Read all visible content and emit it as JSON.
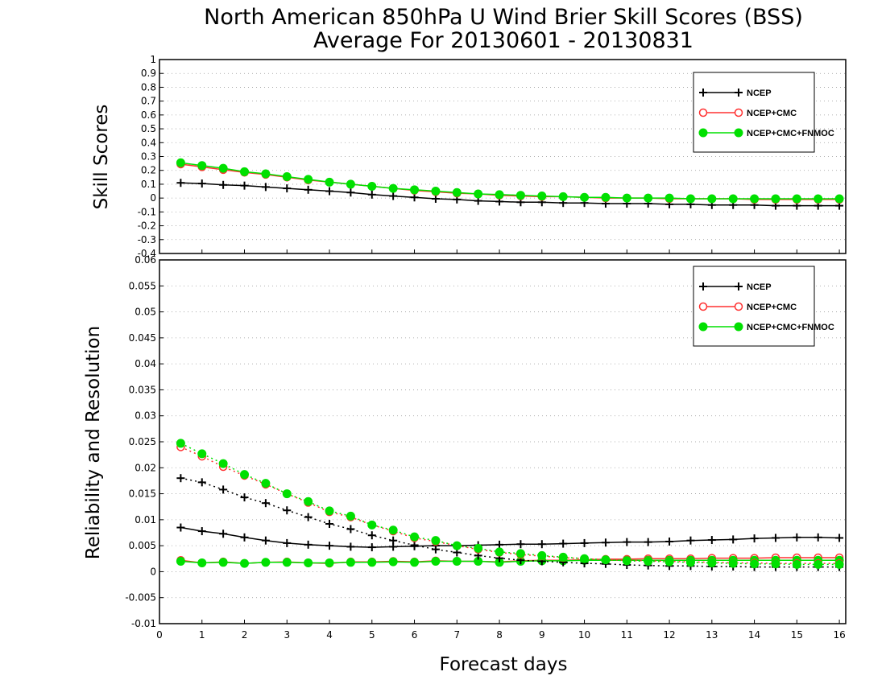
{
  "title": "North American 850hPa U Wind Brier Skill Scores (BSS)",
  "subtitle": "Average For 20130601 - 20130831",
  "chart_data": [
    {
      "type": "line",
      "ylabel": "Skill Scores",
      "xlim": [
        0,
        16.15
      ],
      "ylim": [
        -0.4,
        1
      ],
      "yticks": [
        "1",
        "0.9",
        "0.8",
        "0.7",
        "0.6",
        "0.5",
        "0.4",
        "0.3",
        "0.2",
        "0.1",
        "0",
        "-0.1",
        "-0.2",
        "-0.3",
        "-0.4"
      ],
      "grid": true,
      "legend_position": "top-right",
      "x": [
        0.5,
        1,
        1.5,
        2,
        2.5,
        3,
        3.5,
        4,
        4.5,
        5,
        5.5,
        6,
        6.5,
        7,
        7.5,
        8,
        8.5,
        9,
        9.5,
        10,
        10.5,
        11,
        11.5,
        12,
        12.5,
        13,
        13.5,
        14,
        14.5,
        15,
        15.5,
        16
      ],
      "series": [
        {
          "name": "NCEP",
          "color": "#000000",
          "marker": "plus",
          "dash": "solid",
          "values": [
            0.11,
            0.105,
            0.095,
            0.09,
            0.08,
            0.07,
            0.06,
            0.05,
            0.04,
            0.025,
            0.015,
            0.005,
            -0.005,
            -0.01,
            -0.02,
            -0.025,
            -0.03,
            -0.03,
            -0.035,
            -0.035,
            -0.04,
            -0.04,
            -0.04,
            -0.045,
            -0.045,
            -0.05,
            -0.05,
            -0.05,
            -0.055,
            -0.055,
            -0.055,
            -0.055
          ]
        },
        {
          "name": "NCEP+CMC",
          "color": "#ff3030",
          "marker": "circle-open",
          "dash": "solid",
          "values": [
            0.245,
            0.225,
            0.205,
            0.185,
            0.17,
            0.15,
            0.13,
            0.115,
            0.1,
            0.085,
            0.07,
            0.055,
            0.045,
            0.035,
            0.03,
            0.02,
            0.015,
            0.01,
            0.01,
            0.005,
            0,
            0,
            0,
            -0.005,
            -0.005,
            -0.005,
            -0.005,
            -0.01,
            -0.01,
            -0.01,
            -0.01,
            -0.01
          ]
        },
        {
          "name": "NCEP+CMC+FNMOC",
          "color": "#00e000",
          "marker": "circle-filled",
          "dash": "solid",
          "values": [
            0.255,
            0.235,
            0.215,
            0.19,
            0.175,
            0.155,
            0.135,
            0.115,
            0.1,
            0.085,
            0.07,
            0.06,
            0.05,
            0.04,
            0.03,
            0.025,
            0.02,
            0.015,
            0.01,
            0.005,
            0.005,
            0,
            0,
            0,
            -0.005,
            -0.005,
            -0.005,
            -0.005,
            -0.005,
            -0.005,
            -0.005,
            -0.005
          ]
        }
      ],
      "legend": [
        "NCEP",
        "NCEP+CMC",
        "NCEP+CMC+FNMOC"
      ]
    },
    {
      "type": "line",
      "xlabel": "Forecast days",
      "ylabel": "Reliability and Resolution",
      "xlim": [
        0,
        16.15
      ],
      "ylim": [
        -0.01,
        0.06
      ],
      "xticks": [
        "0",
        "1",
        "2",
        "3",
        "4",
        "5",
        "6",
        "7",
        "8",
        "9",
        "10",
        "11",
        "12",
        "13",
        "14",
        "15",
        "16"
      ],
      "yticks": [
        "0.06",
        "0.055",
        "0.05",
        "0.045",
        "0.04",
        "0.035",
        "0.03",
        "0.025",
        "0.02",
        "0.015",
        "0.01",
        "0.005",
        "0",
        "-0.005",
        "-0.01"
      ],
      "grid": true,
      "legend_position": "top-right",
      "x": [
        0.5,
        1,
        1.5,
        2,
        2.5,
        3,
        3.5,
        4,
        4.5,
        5,
        5.5,
        6,
        6.5,
        7,
        7.5,
        8,
        8.5,
        9,
        9.5,
        10,
        10.5,
        11,
        11.5,
        12,
        12.5,
        13,
        13.5,
        14,
        14.5,
        15,
        15.5,
        16
      ],
      "series": [
        {
          "name": "NCEP",
          "color": "#000000",
          "marker": "plus",
          "dash": "solid",
          "values": [
            0.0085,
            0.0078,
            0.0073,
            0.0066,
            0.006,
            0.0055,
            0.0052,
            0.005,
            0.0048,
            0.0047,
            0.0048,
            0.0049,
            0.005,
            0.005,
            0.0051,
            0.0052,
            0.0053,
            0.0053,
            0.0054,
            0.0055,
            0.0056,
            0.0057,
            0.0057,
            0.0058,
            0.006,
            0.0061,
            0.0062,
            0.0064,
            0.0065,
            0.0066,
            0.0066,
            0.0065
          ]
        },
        {
          "name": "NCEP+CMC",
          "color": "#ff3030",
          "marker": "circle-open",
          "dash": "solid",
          "values": [
            0.0022,
            0.0017,
            0.0019,
            0.0016,
            0.0018,
            0.0019,
            0.0017,
            0.0016,
            0.0019,
            0.0019,
            0.002,
            0.0019,
            0.0021,
            0.002,
            0.002,
            0.0019,
            0.0021,
            0.0022,
            0.0022,
            0.0023,
            0.0024,
            0.0024,
            0.0025,
            0.0025,
            0.0025,
            0.0026,
            0.0026,
            0.0026,
            0.0027,
            0.0027,
            0.0027,
            0.0027
          ]
        },
        {
          "name": "NCEP+CMC+FNMOC",
          "color": "#00e000",
          "marker": "circle-filled",
          "dash": "solid",
          "values": [
            0.002,
            0.0017,
            0.0018,
            0.0016,
            0.0018,
            0.0018,
            0.0017,
            0.0017,
            0.0018,
            0.0018,
            0.0019,
            0.0018,
            0.002,
            0.002,
            0.002,
            0.0018,
            0.002,
            0.0021,
            0.0021,
            0.0022,
            0.0022,
            0.0022,
            0.0022,
            0.0022,
            0.0022,
            0.0022,
            0.0022,
            0.0022,
            0.0022,
            0.0022,
            0.0022,
            0.0022
          ]
        },
        {
          "name": "NCEP",
          "color": "#000000",
          "marker": "plus",
          "dash": "dotted",
          "values": [
            0.018,
            0.0172,
            0.0158,
            0.0143,
            0.0132,
            0.0118,
            0.0105,
            0.0092,
            0.0082,
            0.007,
            0.006,
            0.0051,
            0.0043,
            0.0037,
            0.0031,
            0.0026,
            0.0022,
            0.002,
            0.0018,
            0.0016,
            0.0015,
            0.0013,
            0.0012,
            0.0011,
            0.0011,
            0.001,
            0.001,
            0.0009,
            0.0009,
            0.0009,
            0.0009,
            0.0009
          ]
        },
        {
          "name": "NCEP+CMC",
          "color": "#ff3030",
          "marker": "circle-open",
          "dash": "dotted",
          "values": [
            0.024,
            0.0222,
            0.0202,
            0.0185,
            0.0168,
            0.015,
            0.0133,
            0.0115,
            0.0105,
            0.009,
            0.0078,
            0.0065,
            0.0058,
            0.005,
            0.0043,
            0.0037,
            0.0033,
            0.003,
            0.0027,
            0.0025,
            0.0023,
            0.0022,
            0.0021,
            0.002,
            0.0019,
            0.0018,
            0.0017,
            0.0017,
            0.0016,
            0.0016,
            0.0016,
            0.0016
          ]
        },
        {
          "name": "NCEP+CMC+FNMOC",
          "color": "#00e000",
          "marker": "circle-filled",
          "dash": "dotted",
          "values": [
            0.0247,
            0.0227,
            0.0208,
            0.0187,
            0.017,
            0.015,
            0.0135,
            0.0117,
            0.0107,
            0.009,
            0.008,
            0.0067,
            0.006,
            0.005,
            0.0045,
            0.0038,
            0.0035,
            0.0031,
            0.0028,
            0.0025,
            0.0023,
            0.0021,
            0.002,
            0.0019,
            0.0018,
            0.0017,
            0.0016,
            0.0015,
            0.0015,
            0.0014,
            0.0014,
            0.0014
          ]
        }
      ],
      "legend": [
        "NCEP",
        "NCEP+CMC",
        "NCEP+CMC+FNMOC"
      ]
    }
  ]
}
